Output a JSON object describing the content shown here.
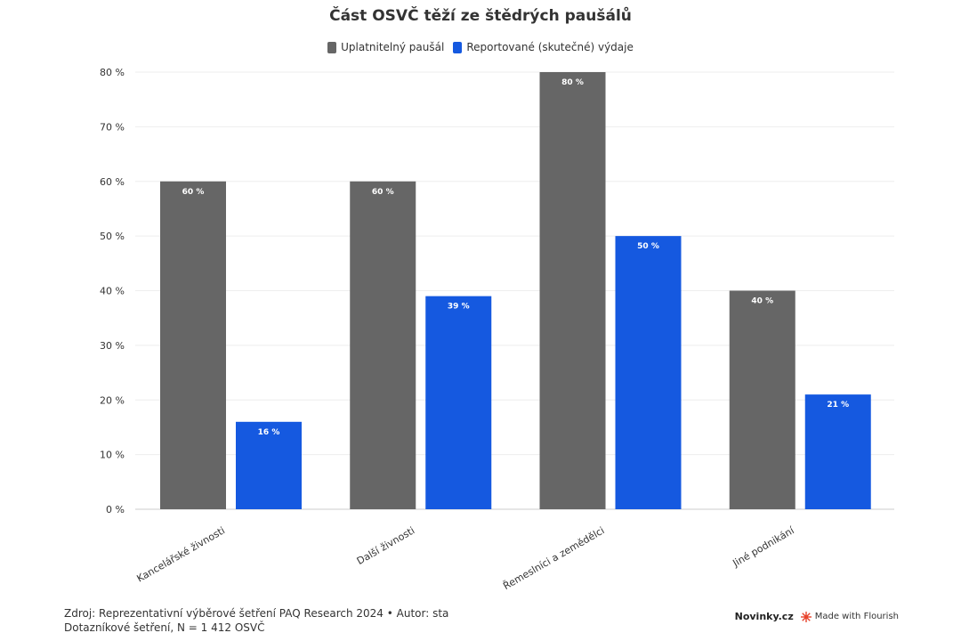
{
  "chart_data": {
    "type": "bar",
    "title": "Část OSVČ těží ze štědrých paušálů",
    "categories": [
      "Kancelářské živnosti",
      "Další živnosti",
      "Řemeslníci a zemědělci",
      "Jiné podnikání"
    ],
    "series": [
      {
        "name": "Uplatnitelný paušál",
        "color": "#666666",
        "values": [
          60,
          60,
          80,
          40
        ],
        "labels": [
          "60 %",
          "60 %",
          "80 %",
          "40 %"
        ]
      },
      {
        "name": "Reportované (skutečné) výdaje",
        "color": "#1559e0",
        "values": [
          16,
          39,
          50,
          21
        ],
        "labels": [
          "16 %",
          "39 %",
          "50 %",
          "21 %"
        ]
      }
    ],
    "yticks": [
      0,
      10,
      20,
      30,
      40,
      50,
      60,
      70,
      80
    ],
    "ytick_labels": [
      "0 %",
      "10 %",
      "20 %",
      "30 %",
      "40 %",
      "50 %",
      "60 %",
      "70 %",
      "80 %"
    ],
    "ylim": [
      0,
      80
    ],
    "grid": true,
    "legend_position": "top-center"
  },
  "footer": {
    "source_line1": "Zdroj: Reprezentativní výběrové šetření PAQ Research 2024 • Autor: sta",
    "source_line2": "Dotazníkové šetření, N = 1 412 OSVČ",
    "brand": "Novinky.cz",
    "flourish": "Made with Flourish"
  }
}
